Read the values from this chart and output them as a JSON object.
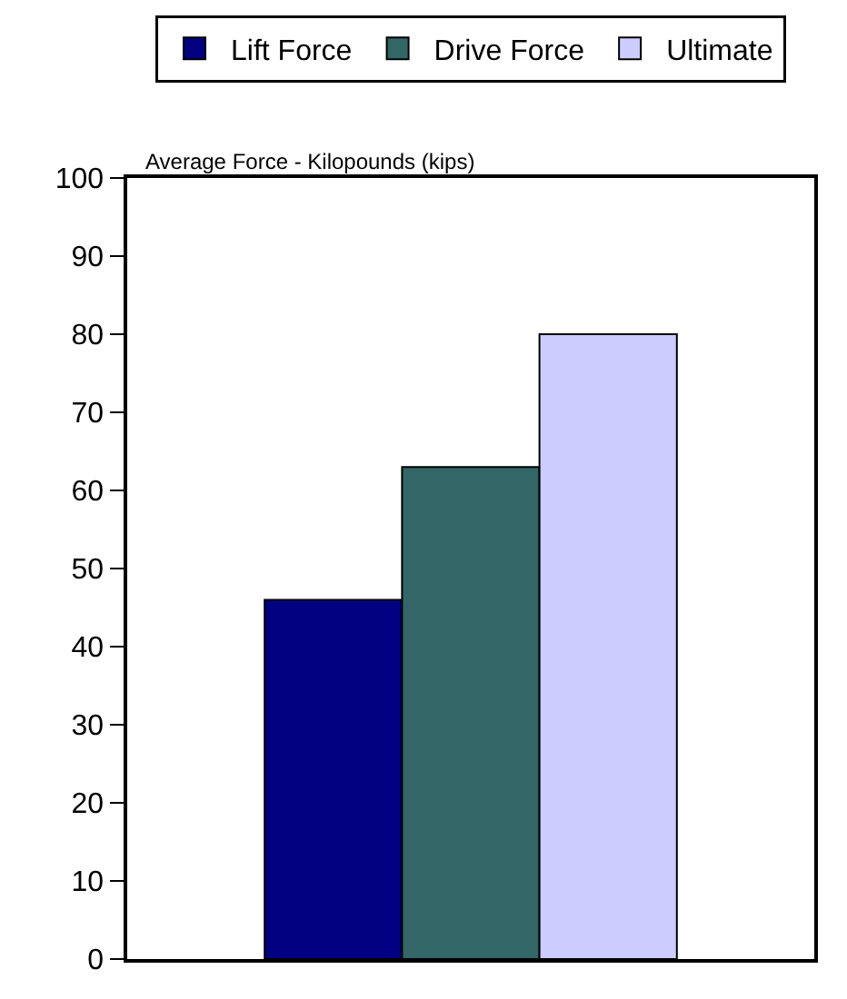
{
  "chart_data": {
    "type": "bar",
    "ylabel": "Average Force - Kilopounds (kips)",
    "categories": [
      null
    ],
    "series": [
      {
        "name": "Lift Force",
        "color": "#000080",
        "values": [
          46
        ]
      },
      {
        "name": "Drive Force",
        "color": "#336666",
        "values": [
          63
        ]
      },
      {
        "name": "Ultimate",
        "color": "#ccccff",
        "values": [
          80
        ]
      }
    ],
    "ylim": [
      0,
      100
    ],
    "yticks": [
      0,
      10,
      20,
      30,
      40,
      50,
      60,
      70,
      80,
      90,
      100
    ],
    "legend": "top",
    "tick_labels": "y"
  }
}
